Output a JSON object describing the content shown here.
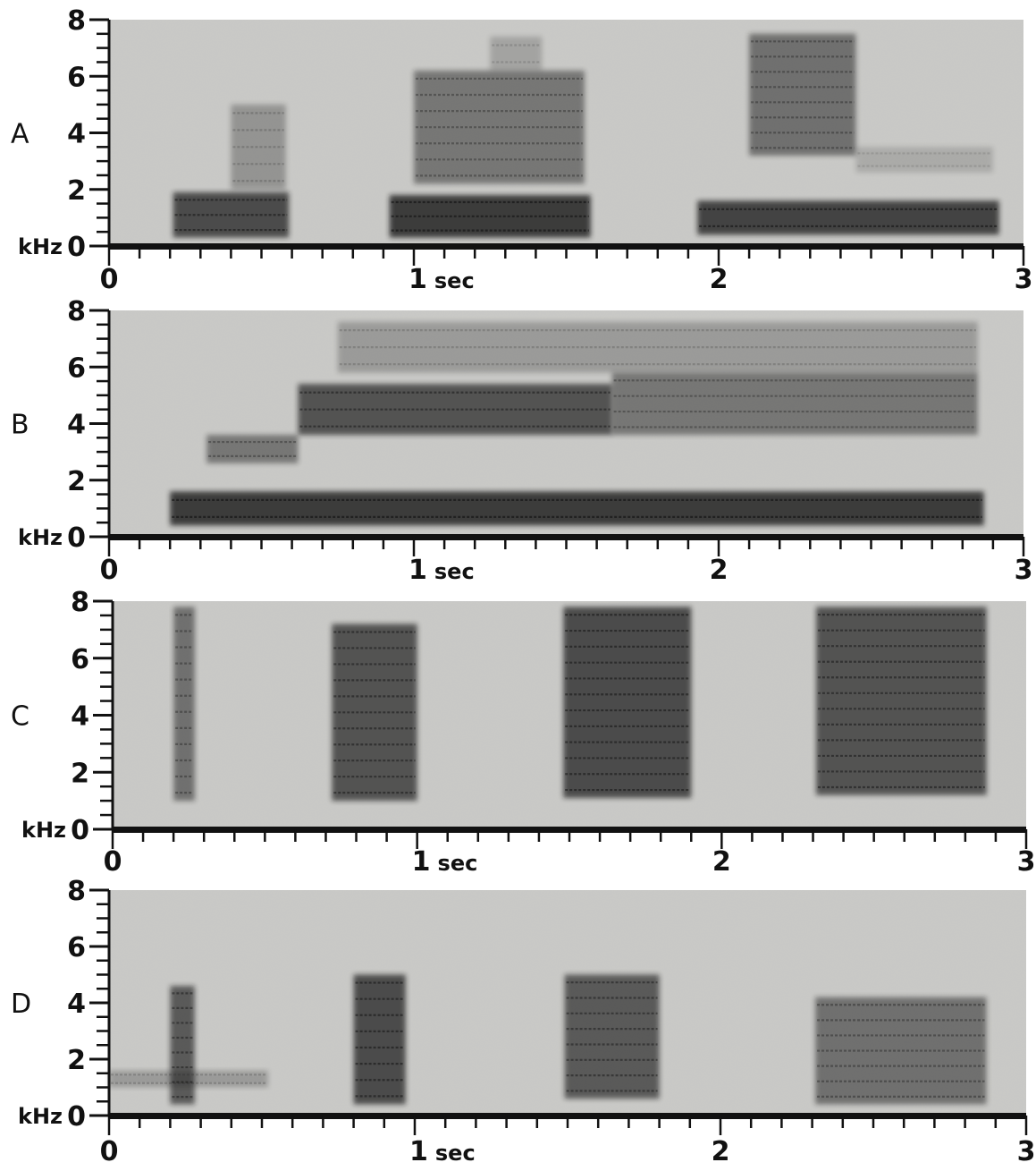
{
  "chart_data": [
    {
      "type": "spectrogram",
      "panel": "A",
      "y_unit": "kHz",
      "y_ticks": [
        "0",
        "2",
        "4",
        "6",
        "8"
      ],
      "ylim": [
        0,
        8
      ],
      "x_ticks": [
        "0",
        "1 sec",
        "2",
        "3"
      ],
      "xlim": [
        0,
        3
      ],
      "grid": false,
      "syllables": [
        {
          "t_start": 0.21,
          "t_end": 0.59,
          "f_low": 0.3,
          "f_high": 1.9,
          "intensity": 0.85
        },
        {
          "t_start": 0.4,
          "t_end": 0.58,
          "f_low": 2.0,
          "f_high": 5.0,
          "intensity": 0.35
        },
        {
          "t_start": 0.92,
          "t_end": 1.58,
          "f_low": 0.3,
          "f_high": 1.8,
          "intensity": 0.95
        },
        {
          "t_start": 1.0,
          "t_end": 1.56,
          "f_low": 2.2,
          "f_high": 6.2,
          "intensity": 0.55
        },
        {
          "t_start": 1.25,
          "t_end": 1.42,
          "f_low": 6.2,
          "f_high": 7.4,
          "intensity": 0.25
        },
        {
          "t_start": 1.93,
          "t_end": 2.92,
          "f_low": 0.4,
          "f_high": 1.6,
          "intensity": 0.9
        },
        {
          "t_start": 2.1,
          "t_end": 2.45,
          "f_low": 3.2,
          "f_high": 7.5,
          "intensity": 0.6
        },
        {
          "t_start": 2.45,
          "t_end": 2.9,
          "f_low": 2.6,
          "f_high": 3.5,
          "intensity": 0.2
        }
      ]
    },
    {
      "type": "spectrogram",
      "panel": "B",
      "y_unit": "kHz",
      "y_ticks": [
        "0",
        "2",
        "4",
        "6",
        "8"
      ],
      "ylim": [
        0,
        8
      ],
      "x_ticks": [
        "0",
        "1 sec",
        "2",
        "3"
      ],
      "xlim": [
        0,
        3
      ],
      "grid": false,
      "syllables": [
        {
          "t_start": 0.2,
          "t_end": 2.87,
          "f_low": 0.4,
          "f_high": 1.6,
          "intensity": 0.95
        },
        {
          "t_start": 0.32,
          "t_end": 0.62,
          "f_low": 2.6,
          "f_high": 3.6,
          "intensity": 0.55
        },
        {
          "t_start": 0.62,
          "t_end": 1.65,
          "f_low": 3.6,
          "f_high": 5.4,
          "intensity": 0.8
        },
        {
          "t_start": 1.65,
          "t_end": 2.85,
          "f_low": 3.6,
          "f_high": 5.8,
          "intensity": 0.55
        },
        {
          "t_start": 0.75,
          "t_end": 2.85,
          "f_low": 5.8,
          "f_high": 7.6,
          "intensity": 0.3
        }
      ]
    },
    {
      "type": "spectrogram",
      "panel": "C",
      "y_unit": "kHz",
      "y_ticks": [
        "0",
        "2",
        "4",
        "6",
        "8"
      ],
      "ylim": [
        0,
        8
      ],
      "x_ticks": [
        "0",
        "1 sec",
        "2",
        "3"
      ],
      "xlim": [
        0,
        3
      ],
      "grid": false,
      "syllables": [
        {
          "t_start": 0.2,
          "t_end": 0.27,
          "f_low": 1.0,
          "f_high": 7.8,
          "intensity": 0.6
        },
        {
          "t_start": 0.72,
          "t_end": 1.0,
          "f_low": 1.0,
          "f_high": 7.2,
          "intensity": 0.8
        },
        {
          "t_start": 1.48,
          "t_end": 1.9,
          "f_low": 1.1,
          "f_high": 7.8,
          "intensity": 0.85
        },
        {
          "t_start": 2.31,
          "t_end": 2.87,
          "f_low": 1.2,
          "f_high": 7.8,
          "intensity": 0.8
        }
      ]
    },
    {
      "type": "spectrogram",
      "panel": "D",
      "y_unit": "kHz",
      "y_ticks": [
        "0",
        "2",
        "4",
        "6",
        "8"
      ],
      "ylim": [
        0,
        8
      ],
      "x_ticks": [
        "0",
        "1 sec",
        "2",
        "3"
      ],
      "xlim": [
        0,
        3
      ],
      "grid": false,
      "syllables": [
        {
          "t_start": 0.0,
          "t_end": 0.52,
          "f_low": 1.0,
          "f_high": 1.6,
          "intensity": 0.3
        },
        {
          "t_start": 0.2,
          "t_end": 0.28,
          "f_low": 0.4,
          "f_high": 4.6,
          "intensity": 0.75
        },
        {
          "t_start": 0.8,
          "t_end": 0.97,
          "f_low": 0.4,
          "f_high": 5.0,
          "intensity": 0.85
        },
        {
          "t_start": 1.49,
          "t_end": 1.8,
          "f_low": 0.6,
          "f_high": 5.0,
          "intensity": 0.75
        },
        {
          "t_start": 2.31,
          "t_end": 2.87,
          "f_low": 0.4,
          "f_high": 4.2,
          "intensity": 0.6
        }
      ]
    }
  ]
}
